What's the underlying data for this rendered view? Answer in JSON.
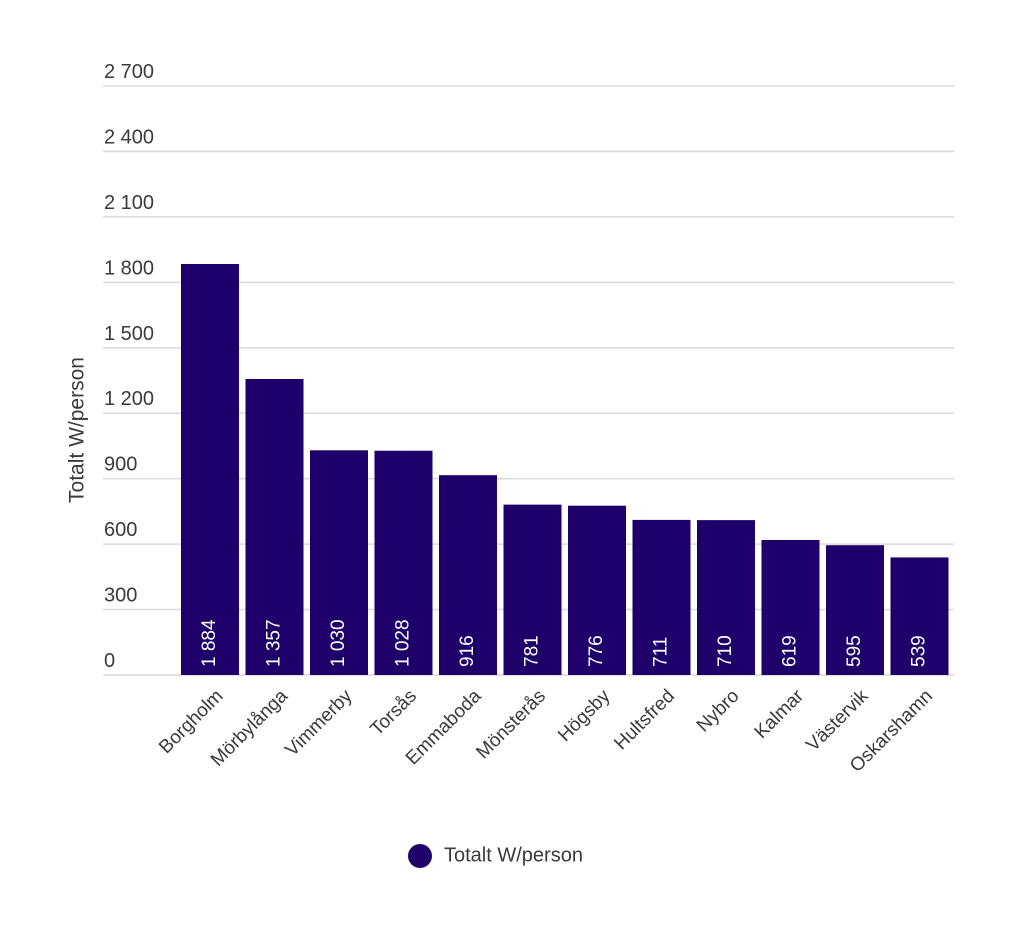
{
  "chart_data": {
    "type": "bar",
    "ylabel": "Totalt W/person",
    "xlabel": "",
    "categories": [
      "Borgholm",
      "Mörbylånga",
      "Vimmerby",
      "Torsås",
      "Emmaboda",
      "Mönsterås",
      "Högsby",
      "Hultsfred",
      "Nybro",
      "Kalmar",
      "Västervik",
      "Oskarshamn"
    ],
    "series": [
      {
        "name": "Totalt W/person",
        "values": [
          1884,
          1357,
          1030,
          1028,
          916,
          781,
          776,
          711,
          710,
          619,
          595,
          539
        ],
        "value_labels": [
          "1 884",
          "1 357",
          "1 030",
          "1 028",
          "916",
          "781",
          "776",
          "711",
          "710",
          "619",
          "595",
          "539"
        ]
      }
    ],
    "ylim": [
      0,
      2700
    ],
    "yticks": [
      0,
      300,
      600,
      900,
      1200,
      1500,
      1800,
      2100,
      2400,
      2700
    ],
    "ytick_labels": [
      "0",
      "300",
      "600",
      "900",
      "1 200",
      "1 500",
      "1 800",
      "2 100",
      "2 400",
      "2 700"
    ],
    "grid": true,
    "legend_position": "bottom",
    "legend": [
      {
        "label": "Totalt W/person",
        "color": "#1f006b"
      }
    ],
    "bar_color": "#1f006b"
  }
}
